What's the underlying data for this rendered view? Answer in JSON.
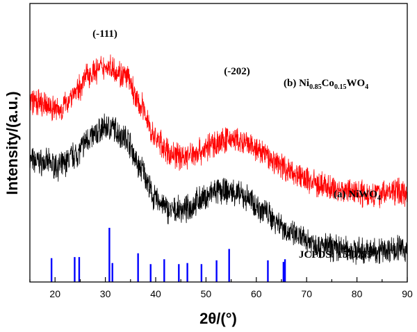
{
  "chart_data": {
    "type": "line",
    "title": "",
    "xlabel": "2θ/(°)",
    "ylabel": "Intensity/(a.u.)",
    "xlim": [
      15,
      90
    ],
    "xticks": [
      20,
      30,
      40,
      50,
      60,
      70,
      80,
      90
    ],
    "grid": false,
    "legend": "none",
    "series": [
      {
        "name": "(a) NiWO4",
        "label_main": "(a) NiWO",
        "label_sub": "4",
        "color": "#000000",
        "x": [
          15,
          18,
          21,
          24,
          27,
          30,
          31,
          34,
          37,
          40,
          43,
          46,
          49,
          52,
          55,
          58,
          61,
          64,
          67,
          70,
          73,
          76,
          79,
          82,
          85,
          88,
          90
        ],
        "y": [
          0.66,
          0.65,
          0.63,
          0.69,
          0.78,
          0.83,
          0.83,
          0.78,
          0.62,
          0.46,
          0.4,
          0.41,
          0.46,
          0.5,
          0.5,
          0.47,
          0.41,
          0.35,
          0.28,
          0.25,
          0.22,
          0.21,
          0.2,
          0.19,
          0.2,
          0.21,
          0.2
        ]
      },
      {
        "name": "(b) Ni0.85Co0.15WO4",
        "label_parts": [
          "(b) Ni",
          "0.85",
          "Co",
          "0.15",
          "WO",
          "4"
        ],
        "color": "#ff0000",
        "x": [
          15,
          18,
          21,
          24,
          27,
          30,
          31,
          34,
          37,
          40,
          43,
          46,
          49,
          52,
          55,
          58,
          61,
          64,
          67,
          70,
          73,
          76,
          79,
          82,
          85,
          88,
          90
        ],
        "y": [
          1.0,
          0.97,
          0.95,
          1.04,
          1.14,
          1.17,
          1.17,
          1.12,
          0.97,
          0.8,
          0.72,
          0.71,
          0.74,
          0.78,
          0.8,
          0.77,
          0.73,
          0.68,
          0.63,
          0.59,
          0.56,
          0.54,
          0.53,
          0.52,
          0.52,
          0.53,
          0.52
        ]
      }
    ],
    "reference": {
      "name": "JCPDS: 15-0755",
      "color": "#0000ff",
      "x": [
        19.3,
        23.9,
        24.8,
        30.8,
        31.4,
        36.5,
        39.0,
        41.7,
        44.6,
        46.3,
        49.1,
        52.1,
        54.6,
        62.3,
        65.4,
        65.7
      ],
      "intensity": [
        0.44,
        0.46,
        0.46,
        1.0,
        0.35,
        0.53,
        0.33,
        0.42,
        0.33,
        0.35,
        0.33,
        0.4,
        0.61,
        0.4,
        0.37,
        0.42
      ]
    },
    "annotations": [
      {
        "text": "(-111)",
        "x": 31
      },
      {
        "text": "(-202)",
        "x": 55
      }
    ]
  }
}
